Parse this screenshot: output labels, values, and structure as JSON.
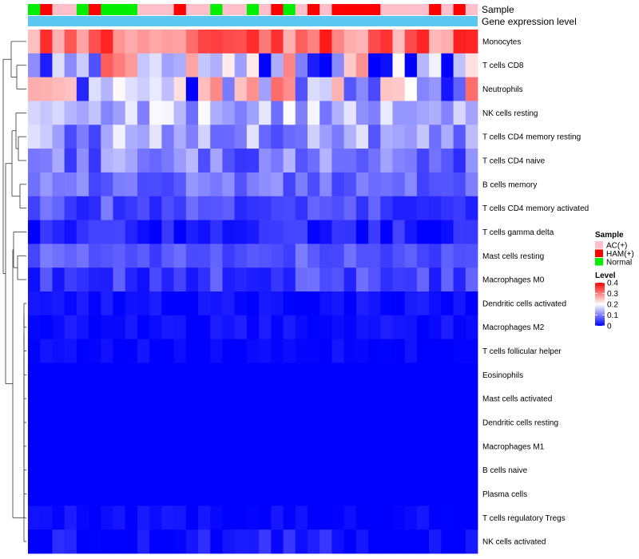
{
  "chart_data": {
    "type": "heatmap",
    "title": "",
    "annotation_labels": {
      "sample": "Sample",
      "gene_expression": "Gene expression level"
    },
    "rows": [
      "Monocytes",
      "T cells CD8",
      "Neutrophils",
      "NK cells resting",
      "T cells CD4 memory resting",
      "T cells CD4 naive",
      "B cells memory",
      "T cells CD4 memory activated",
      "T cells gamma delta",
      "Mast cells resting",
      "Macrophages M0",
      "Dendritic cells activated",
      "Macrophages M2",
      "T cells follicular helper",
      "Eosinophils",
      "Mast cells activated",
      "Dendritic cells resting",
      "Macrophages M1",
      "B cells naive",
      "Plasma cells",
      "T cells regulatory  Tregs",
      "NK cells activated"
    ],
    "sample_groups": [
      "Normal",
      "HAM(+)",
      "AC(+)",
      "AC(+)",
      "Normal",
      "HAM(+)",
      "Normal",
      "Normal",
      "Normal",
      "AC(+)",
      "AC(+)",
      "AC(+)",
      "HAM(+)",
      "AC(+)",
      "AC(+)",
      "Normal",
      "AC(+)",
      "AC(+)",
      "Normal",
      "AC(+)",
      "HAM(+)",
      "Normal",
      "AC(+)",
      "HAM(+)",
      "AC(+)",
      "HAM(+)",
      "HAM(+)",
      "HAM(+)",
      "HAM(+)",
      "AC(+)",
      "AC(+)",
      "AC(+)",
      "AC(+)",
      "HAM(+)",
      "AC(+)",
      "HAM(+)",
      "AC(+)"
    ],
    "row_base": [
      0.32,
      0.18,
      0.16,
      0.14,
      0.12,
      0.09,
      0.085,
      0.06,
      0.02,
      0.07,
      0.05,
      0.01,
      0.01,
      0.003,
      0.0,
      0.0,
      0.0,
      0.0,
      0.0,
      0.0,
      0.004,
      0.008
    ],
    "row_amplitude": [
      0.07,
      0.2,
      0.17,
      0.06,
      0.07,
      0.06,
      0.035,
      0.04,
      0.04,
      0.03,
      0.04,
      0.015,
      0.015,
      0.015,
      0.0,
      0.0,
      0.0,
      0.0,
      0.0,
      0.0,
      0.02,
      0.04
    ],
    "legend": {
      "sample_title": "Sample",
      "sample_items": [
        {
          "label": "AC(+)",
          "color": "#ffc0cb"
        },
        {
          "label": "HAM(+)",
          "color": "#ff0000"
        },
        {
          "label": "Normal",
          "color": "#00ee00"
        }
      ],
      "level_title": "Level",
      "level_ticks": [
        0.4,
        0.3,
        0.2,
        0.1,
        0
      ],
      "level_range": [
        0,
        0.4
      ]
    },
    "colors": {
      "low": "#0000ff",
      "mid": "#ffffff",
      "high": "#ff0000",
      "gene_bar": "#5ac8f0"
    }
  }
}
